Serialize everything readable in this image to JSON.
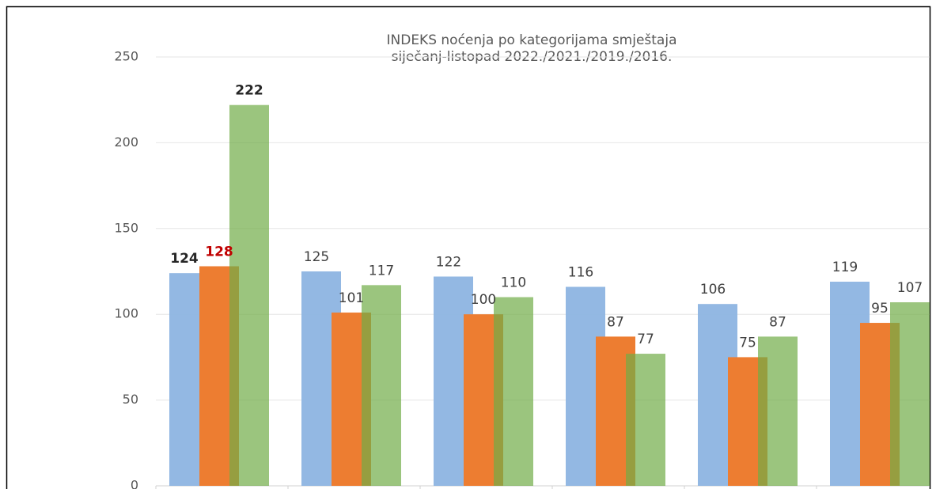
{
  "chart_data": {
    "type": "bar",
    "title": [
      "INDEKS noćenja po kategorijama smještaja",
      "siječanj-listopad 2022./2021./2019./2016."
    ],
    "categories": [
      null,
      null,
      null,
      null,
      null,
      null
    ],
    "series": [
      {
        "color": "#8db4e2",
        "values": [
          124,
          125,
          122,
          116,
          106,
          119
        ],
        "label_colors": [
          "#262626",
          "#404040",
          "#404040",
          "#404040",
          "#404040",
          "#404040"
        ],
        "label_bold": [
          true,
          false,
          false,
          false,
          false,
          false
        ]
      },
      {
        "color": "#ed7d31",
        "values": [
          128,
          101,
          100,
          87,
          75,
          95
        ],
        "label_colors": [
          "#c00000",
          "#404040",
          "#404040",
          "#404040",
          "#404040",
          "#404040"
        ],
        "label_bold": [
          true,
          false,
          false,
          false,
          false,
          false
        ]
      },
      {
        "color": "#70ad47",
        "values": [
          222,
          117,
          110,
          77,
          87,
          107
        ],
        "label_colors": [
          "#262626",
          "#404040",
          "#404040",
          "#404040",
          "#404040",
          "#404040"
        ],
        "label_bold": [
          true,
          false,
          false,
          false,
          false,
          false
        ]
      }
    ],
    "ylim": [
      0,
      250
    ],
    "yticks": [
      0,
      50,
      100,
      150,
      200,
      250
    ],
    "grid": true
  }
}
